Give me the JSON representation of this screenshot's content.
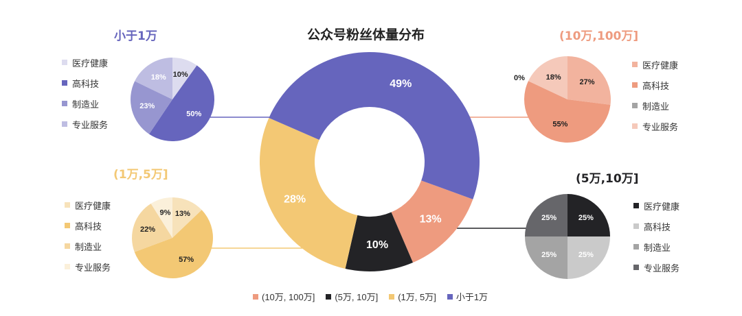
{
  "title": "公众号粉丝体量分布",
  "chart_data": [
    {
      "type": "pie",
      "title": "公众号粉丝体量分布",
      "categories": [
        "(10万, 100万]",
        "(5万, 10万]",
        "(1万, 5万]",
        "小于1万"
      ],
      "values": [
        13,
        10,
        28,
        49
      ],
      "labels": [
        "13%",
        "10%",
        "28%",
        "49%"
      ],
      "colors": [
        "#EE9B7F",
        "#232326",
        "#F3C874",
        "#6665BD"
      ],
      "legend_position": "bottom"
    },
    {
      "type": "pie",
      "title": "小于1万",
      "categories": [
        "医疗健康",
        "高科技",
        "制造业",
        "专业服务"
      ],
      "values": [
        10,
        50,
        23,
        18
      ],
      "labels": [
        "10%",
        "50%",
        "23%",
        "18%"
      ],
      "colors": [
        "#DDDCEF",
        "#6665BD",
        "#9796D0",
        "#BEBDE2"
      ],
      "title_color": "#6665BD",
      "legend_position": "left"
    },
    {
      "type": "pie",
      "title": "(10万,100万]",
      "categories": [
        "医疗健康",
        "高科技",
        "制造业",
        "专业服务"
      ],
      "values": [
        27,
        55,
        0,
        18
      ],
      "labels": [
        "27%",
        "55%",
        "0%",
        "18%"
      ],
      "colors": [
        "#F2B39E",
        "#EE9B7F",
        "#A4A4A4",
        "#F5C9BA"
      ],
      "title_color": "#EE9B7F",
      "legend_position": "right"
    },
    {
      "type": "pie",
      "title": "(1万,5万]",
      "categories": [
        "医疗健康",
        "高科技",
        "制造业",
        "专业服务"
      ],
      "values": [
        13,
        57,
        22,
        9
      ],
      "labels": [
        "13%",
        "57%",
        "22%",
        "9%"
      ],
      "colors": [
        "#F7E2BA",
        "#F3C874",
        "#F5D7A0",
        "#FBF0DA"
      ],
      "title_color": "#F3C874",
      "legend_position": "left"
    },
    {
      "type": "pie",
      "title": "(5万,10万]",
      "categories": [
        "医疗健康",
        "高科技",
        "制造业",
        "专业服务"
      ],
      "values": [
        25,
        25,
        25,
        25
      ],
      "labels": [
        "25%",
        "25%",
        "25%",
        "25%"
      ],
      "colors": [
        "#232326",
        "#CACACA",
        "#A4A4A4",
        "#66666A"
      ],
      "title_color": "#232326",
      "legend_position": "right"
    }
  ]
}
